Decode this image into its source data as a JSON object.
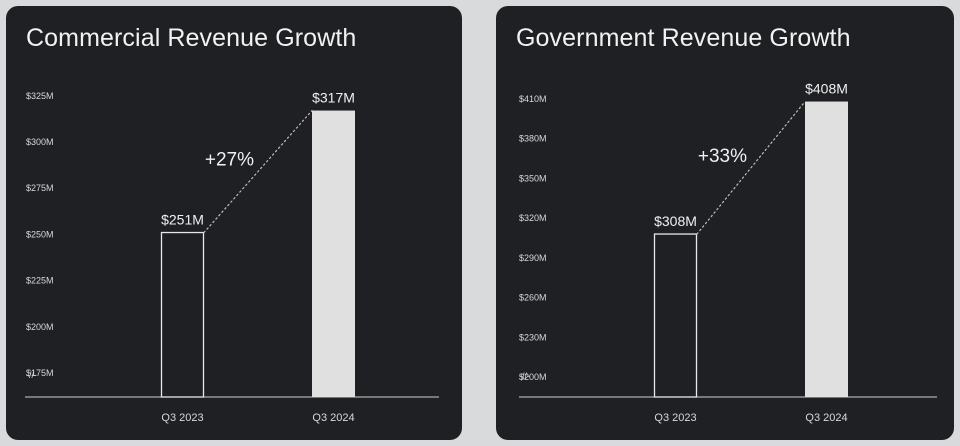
{
  "colors": {
    "page_background": "#d9dadb",
    "card_background": "#1e2023",
    "text": "#f0f0f0",
    "bar_fill": "#e0e0e0",
    "bar_outline": "#e8e8e8"
  },
  "axis_break_symbol": "-//-",
  "chart_data": [
    {
      "type": "bar",
      "title": "Commercial Revenue Growth",
      "categories": [
        "Q3 2023",
        "Q3 2024"
      ],
      "values": [
        251,
        317
      ],
      "value_labels": [
        "$251M",
        "$317M"
      ],
      "growth_label": "+27%",
      "y_ticks": [
        175,
        200,
        225,
        250,
        275,
        300,
        325
      ],
      "y_tick_labels": [
        "$175M",
        "$200M",
        "$225M",
        "$250M",
        "$275M",
        "$300M",
        "$325M"
      ],
      "ylim": [
        162,
        333
      ],
      "axis_broken": true,
      "bar_styles": [
        "outline",
        "filled"
      ],
      "xlabel": "",
      "ylabel": "",
      "grid": false
    },
    {
      "type": "bar",
      "title": "Government Revenue Growth",
      "categories": [
        "Q3 2023",
        "Q3 2024"
      ],
      "values": [
        308,
        408
      ],
      "value_labels": [
        "$308M",
        "$408M"
      ],
      "growth_label": "+33%",
      "y_ticks": [
        200,
        230,
        260,
        290,
        320,
        350,
        380,
        410
      ],
      "y_tick_labels": [
        "$200M",
        "$230M",
        "$260M",
        "$290M",
        "$320M",
        "$350M",
        "$380M",
        "$410M"
      ],
      "ylim": [
        185,
        422
      ],
      "axis_broken": true,
      "bar_styles": [
        "outline",
        "filled"
      ],
      "xlabel": "",
      "ylabel": "",
      "grid": false
    }
  ]
}
